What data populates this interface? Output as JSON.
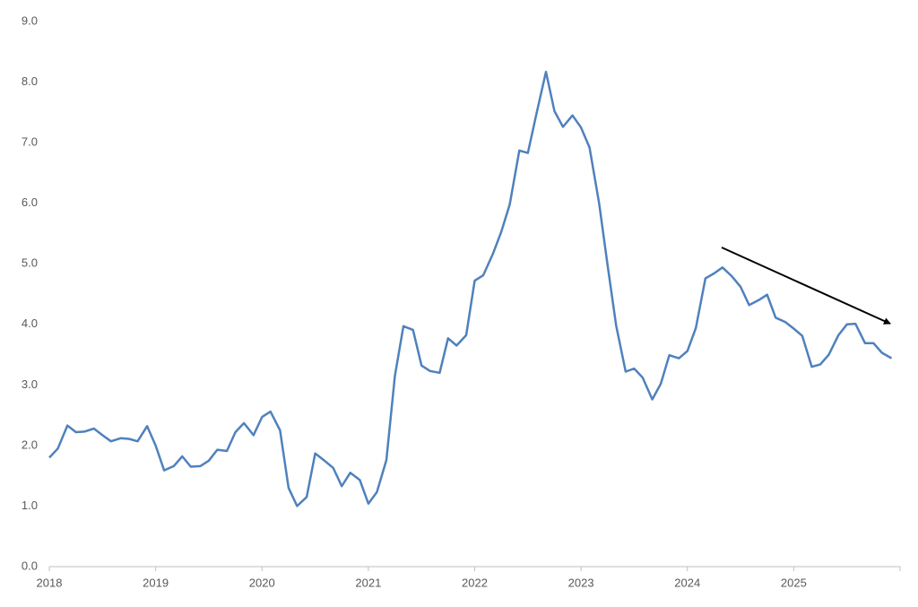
{
  "chart_data": {
    "type": "line",
    "x": [
      2018,
      2018.08,
      2018.17,
      2018.25,
      2018.33,
      2018.42,
      2018.5,
      2018.58,
      2018.67,
      2018.75,
      2018.83,
      2018.92,
      2019,
      2019.08,
      2019.17,
      2019.25,
      2019.33,
      2019.42,
      2019.5,
      2019.58,
      2019.67,
      2019.75,
      2019.83,
      2019.92,
      2020,
      2020.08,
      2020.17,
      2020.25,
      2020.33,
      2020.42,
      2020.5,
      2020.58,
      2020.67,
      2020.75,
      2020.83,
      2020.92,
      2021,
      2021.08,
      2021.17,
      2021.25,
      2021.33,
      2021.42,
      2021.5,
      2021.58,
      2021.67,
      2021.75,
      2021.83,
      2021.92,
      2022,
      2022.08,
      2022.17,
      2022.25,
      2022.33,
      2022.42,
      2022.5,
      2022.58,
      2022.67,
      2022.75,
      2022.83,
      2022.92,
      2023,
      2023.08,
      2023.17,
      2023.25,
      2023.33,
      2023.42,
      2023.5,
      2023.58,
      2023.67,
      2023.75,
      2023.83,
      2023.92,
      2024,
      2024.08,
      2024.17,
      2024.25,
      2024.33,
      2024.42,
      2024.5,
      2024.58,
      2024.67,
      2024.75,
      2024.83,
      2024.92,
      2025,
      2025.08,
      2025.17,
      2025.25,
      2025.33,
      2025.42,
      2025.5,
      2025.58,
      2025.67,
      2025.75,
      2025.83,
      2025.92
    ],
    "values": [
      1.8,
      1.95,
      2.33,
      2.22,
      2.23,
      2.28,
      2.17,
      2.07,
      2.12,
      2.11,
      2.07,
      2.32,
      2.0,
      1.59,
      1.66,
      1.82,
      1.65,
      1.66,
      1.75,
      1.93,
      1.91,
      2.22,
      2.37,
      2.17,
      2.47,
      2.56,
      2.25,
      1.3,
      1.0,
      1.15,
      1.87,
      1.76,
      1.63,
      1.33,
      1.55,
      1.43,
      1.04,
      1.23,
      1.76,
      3.15,
      3.97,
      3.91,
      3.32,
      3.23,
      3.2,
      3.77,
      3.65,
      3.82,
      4.72,
      4.81,
      5.16,
      5.53,
      5.98,
      6.87,
      6.83,
      7.47,
      8.17,
      7.52,
      7.26,
      7.45,
      7.25,
      6.92,
      6.0,
      4.97,
      3.98,
      3.22,
      3.27,
      3.12,
      2.76,
      3.02,
      3.49,
      3.44,
      3.56,
      3.94,
      4.76,
      4.84,
      4.94,
      4.79,
      4.62,
      4.32,
      4.4,
      4.49,
      4.11,
      4.04,
      3.93,
      3.81,
      3.3,
      3.34,
      3.5,
      3.82,
      4.0,
      4.01,
      3.69,
      3.69,
      3.53,
      3.44
    ],
    "color": "#4f81bd",
    "xlim": [
      2018,
      2026
    ],
    "xticks": [
      2018,
      2019,
      2020,
      2021,
      2022,
      2023,
      2024,
      2025
    ],
    "ylim": [
      0,
      9
    ],
    "yticks": [
      {
        "value": 0,
        "label": "0.0"
      },
      {
        "value": 1,
        "label": "1.0"
      },
      {
        "value": 2,
        "label": "2.0"
      },
      {
        "value": 3,
        "label": "3.0"
      },
      {
        "value": 4,
        "label": "4.0"
      },
      {
        "value": 5,
        "label": "5.0"
      },
      {
        "value": 6,
        "label": "6.0"
      },
      {
        "value": 7,
        "label": "7.0"
      },
      {
        "value": 8,
        "label": "8.0"
      },
      {
        "value": 9,
        "label": "9.0"
      }
    ],
    "grid": false
  }
}
